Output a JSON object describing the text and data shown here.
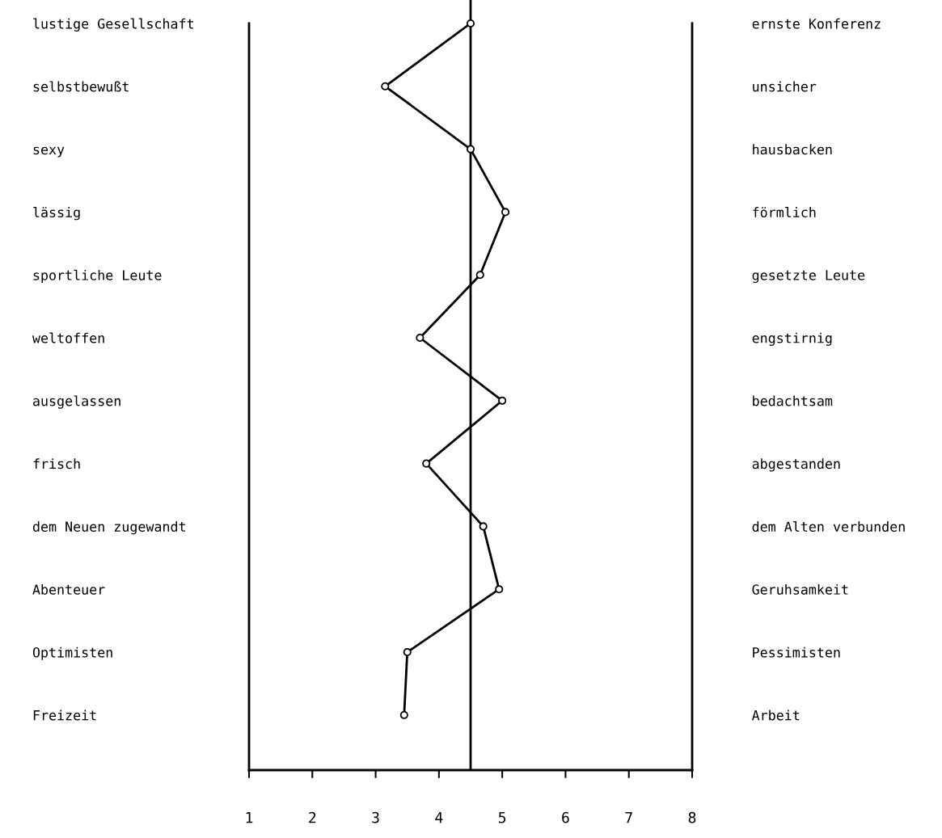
{
  "chart_data": {
    "type": "line",
    "orientation": "horizontal",
    "categories": [
      "lustige Gesellschaft",
      "selbstbewußt",
      "sexy",
      "lässig",
      "sportliche Leute",
      "weltoffen",
      "ausgelassen",
      "frisch",
      "dem Neuen zugewandt",
      "Abenteuer",
      "Optimisten",
      "Freizeit"
    ],
    "y2_categories": [
      "ernste Konferenz",
      "unsicher",
      "hausbacken",
      "förmlich",
      "gesetzte Leute",
      "engstirnig",
      "bedachtsam",
      "abgestanden",
      "dem Alten verbunden",
      "Geruhsamkeit",
      "Pessimisten",
      "Arbeit"
    ],
    "series": [
      {
        "color": "#000000",
        "values": [
          4.5,
          3.15,
          4.5,
          5.05,
          4.65,
          3.7,
          5.0,
          3.8,
          4.7,
          4.95,
          3.5,
          3.45
        ]
      }
    ],
    "xlim": [
      1,
      8
    ],
    "xticks": [
      1,
      2,
      3,
      4,
      5,
      6,
      7,
      8
    ],
    "ref_lines": [
      {
        "axis": "x",
        "value": 4.5,
        "color": "#000000"
      }
    ],
    "marker": "circle",
    "grid": false,
    "legend": false
  }
}
